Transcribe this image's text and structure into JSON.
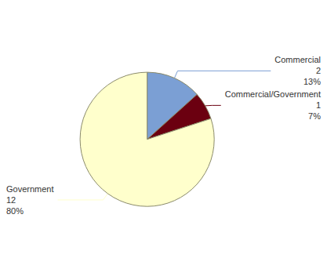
{
  "chart_data": {
    "type": "pie",
    "categories": [
      "Commercial",
      "Commercial/Government",
      "Government"
    ],
    "values": [
      2,
      1,
      12
    ],
    "percentages": [
      {
        "value": 13,
        "label": "13%"
      },
      {
        "value": 7,
        "label": "7%"
      },
      {
        "value": 80,
        "label": "80%"
      }
    ],
    "colors": [
      "#7b9fd4",
      "#6b0010",
      "#ffffcc"
    ],
    "data_labels": true
  }
}
